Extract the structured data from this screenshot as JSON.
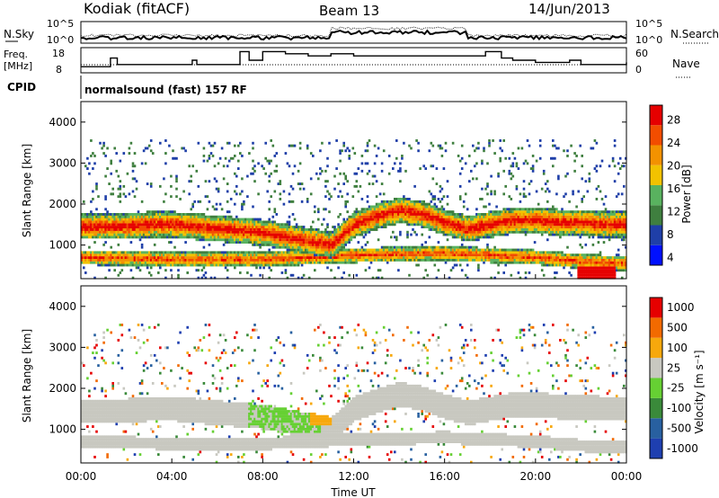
{
  "header": {
    "station": "Kodiak (fitACF)",
    "beam": "Beam 13",
    "date": "14/Jun/2013"
  },
  "top_panels": {
    "nsky_label": "N.Sky",
    "nsky_ticks": [
      "10^5",
      "10^0"
    ],
    "nsearch_label": "N.Search",
    "nsearch_ticks": [
      "10^5",
      "10^0"
    ],
    "freq_label_1": "Freq.",
    "freq_label_2": "[MHz]",
    "freq_ticks": [
      "18",
      "8"
    ],
    "nave_label": "Nave",
    "nave_ticks": [
      "60",
      "0"
    ],
    "cpid_label": "CPID",
    "cpid_text": "normalsound (fast) 157 RF"
  },
  "colors": {
    "power_scale": [
      "#0010ff",
      "#1f3fa8",
      "#3f7f3f",
      "#59b25f",
      "#f2c200",
      "#f39200",
      "#f24d00",
      "#e60000"
    ],
    "velocity_scale": [
      "#1e3fb0",
      "#2860a0",
      "#3a8a3a",
      "#66d033",
      "#c8c8c0",
      "#f7a80c",
      "#f26a00",
      "#e60000"
    ],
    "freq_line": "#000000"
  },
  "chart_data": [
    {
      "type": "heatmap",
      "title": "Power",
      "ylabel": "Slant Range [km]",
      "xlabel": "",
      "xlim": [
        "00:00",
        "00:00"
      ],
      "ylim": [
        180,
        4500
      ],
      "y_ticks": [
        "4000",
        "3000",
        "2000",
        "1000"
      ],
      "colorbar": {
        "label": "Power [dB]",
        "ticks": [
          "28",
          "24",
          "20",
          "16",
          "12",
          "8",
          "4"
        ]
      },
      "bands": [
        {
          "name": "main_band",
          "x": [
            0,
            1,
            2,
            3,
            4,
            5,
            6,
            7,
            8,
            9,
            10,
            11,
            12,
            13,
            14,
            15,
            16,
            17,
            18,
            19,
            20,
            21,
            22,
            23,
            24
          ],
          "center_km": [
            1450,
            1450,
            1450,
            1500,
            1500,
            1450,
            1400,
            1350,
            1300,
            1200,
            1100,
            1000,
            1500,
            1700,
            1850,
            1750,
            1550,
            1400,
            1500,
            1600,
            1600,
            1550,
            1550,
            1500,
            1500
          ]
        },
        {
          "name": "low_band",
          "x": [
            0,
            4,
            8,
            12,
            16,
            18,
            20,
            22,
            24
          ],
          "center_km": [
            700,
            650,
            650,
            750,
            800,
            750,
            700,
            600,
            550
          ]
        }
      ]
    },
    {
      "type": "heatmap",
      "title": "Velocity",
      "ylabel": "Slant Range [km]",
      "xlabel": "Time UT",
      "x_ticks": [
        "00:00",
        "04:00",
        "08:00",
        "12:00",
        "16:00",
        "20:00",
        "00:00"
      ],
      "ylim": [
        180,
        4500
      ],
      "y_ticks": [
        "4000",
        "3000",
        "2000",
        "1000"
      ],
      "colorbar": {
        "label": "Velocity [m s⁻¹]",
        "ticks": [
          "1000",
          "500",
          "100",
          "25",
          "-25",
          "-100",
          "-500",
          "-1000"
        ]
      }
    },
    {
      "type": "line",
      "title": "Freq.",
      "x": [
        0,
        1.3,
        1.6,
        4.9,
        5.1,
        7.0,
        7.4,
        8.0,
        9.0,
        10.0,
        11.0,
        12.0,
        17.3,
        17.8,
        18.5,
        19.0,
        20.0,
        21.5,
        22.0,
        24.0
      ],
      "values": [
        10,
        14,
        11,
        13,
        11,
        17,
        13,
        17,
        16,
        15,
        16,
        15,
        15,
        17,
        14,
        13,
        12,
        13,
        11,
        12
      ]
    }
  ],
  "x_axis_label": "Time UT"
}
